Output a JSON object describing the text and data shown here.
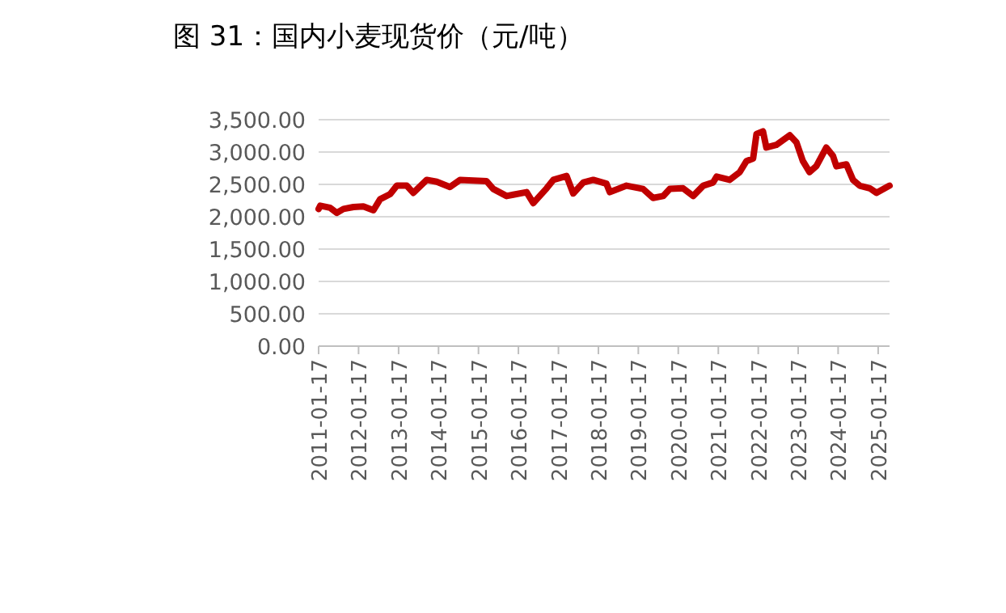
{
  "chart_data": {
    "type": "line",
    "title": "图 31：国内小麦现货价（元/吨）",
    "x": [
      "2011-01-17",
      "2011-02",
      "2011-05",
      "2011-07",
      "2011-09",
      "2011-12",
      "2012-03",
      "2012-06",
      "2012-08",
      "2012-11",
      "2013-01",
      "2013-04",
      "2013-06",
      "2013-10",
      "2014-01",
      "2014-05",
      "2014-08",
      "2015-04",
      "2015-06",
      "2015-10",
      "2015-12",
      "2016-04",
      "2016-06",
      "2016-10",
      "2016-12",
      "2017-04",
      "2017-06",
      "2017-09",
      "2017-12",
      "2018-04",
      "2018-05",
      "2018-10",
      "2019-03",
      "2019-06",
      "2019-09",
      "2019-11",
      "2020-03",
      "2020-06",
      "2020-09",
      "2020-12",
      "2021-01",
      "2021-05",
      "2021-08",
      "2021-10",
      "2021-12",
      "2022-01",
      "2022-03",
      "2022-04",
      "2022-07",
      "2022-11",
      "2023-01",
      "2023-03",
      "2023-05",
      "2023-07",
      "2023-10",
      "2023-12",
      "2024-01",
      "2024-04",
      "2024-06",
      "2024-08",
      "2024-11",
      "2025-01",
      "2025-05"
    ],
    "series": [
      {
        "color": "#c00000",
        "values": [
          2120,
          2170,
          2140,
          2060,
          2120,
          2150,
          2160,
          2100,
          2270,
          2350,
          2480,
          2480,
          2370,
          2570,
          2540,
          2460,
          2570,
          2550,
          2430,
          2320,
          2340,
          2380,
          2210,
          2440,
          2570,
          2630,
          2360,
          2530,
          2570,
          2510,
          2380,
          2480,
          2430,
          2290,
          2320,
          2430,
          2440,
          2320,
          2480,
          2530,
          2620,
          2570,
          2690,
          2860,
          2900,
          3280,
          3320,
          3070,
          3110,
          3260,
          3150,
          2860,
          2690,
          2780,
          3070,
          2940,
          2780,
          2810,
          2570,
          2480,
          2440,
          2370,
          2480
        ]
      }
    ],
    "xlim": [
      "2011-01-17",
      "2025-05"
    ],
    "xticks": [
      "2011-01-17",
      "2012-01-17",
      "2013-01-17",
      "2014-01-17",
      "2015-01-17",
      "2016-01-17",
      "2017-01-17",
      "2018-01-17",
      "2019-01-17",
      "2020-01-17",
      "2021-01-17",
      "2022-01-17",
      "2023-01-17",
      "2024-01-17",
      "2025-01-17"
    ],
    "ylim": [
      0,
      3500
    ],
    "yticks": [
      {
        "value": 0,
        "label": "0.00"
      },
      {
        "value": 500,
        "label": "500.00"
      },
      {
        "value": 1000,
        "label": "1,000.00"
      },
      {
        "value": 1500,
        "label": "1,500.00"
      },
      {
        "value": 2000,
        "label": "2,000.00"
      },
      {
        "value": 2500,
        "label": "2,500.00"
      },
      {
        "value": 3000,
        "label": "3,000.00"
      },
      {
        "value": 3500,
        "label": "3,500.00"
      }
    ],
    "grid": "y"
  }
}
